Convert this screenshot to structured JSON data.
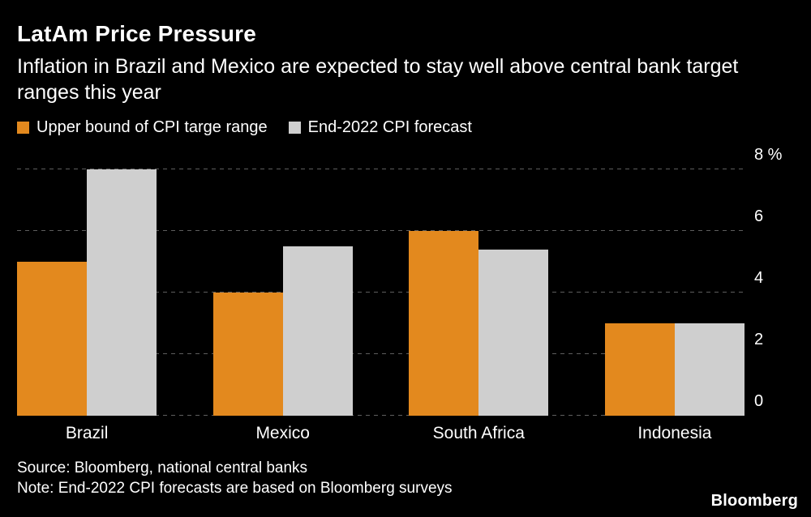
{
  "header": {
    "title": "LatAm Price Pressure",
    "subtitle": "Inflation in Brazil and Mexico are expected to stay well above central bank target ranges this year"
  },
  "chart_data": {
    "type": "bar",
    "title": "LatAm Price Pressure",
    "categories": [
      "Brazil",
      "Mexico",
      "South Africa",
      "Indonesia"
    ],
    "series": [
      {
        "name": "Upper bound of CPI targe range",
        "color": "#E3891E",
        "values": [
          5.0,
          4.0,
          6.0,
          3.0
        ]
      },
      {
        "name": "End-2022 CPI forecast",
        "color": "#CFCFCF",
        "values": [
          8.0,
          5.5,
          5.4,
          3.0
        ]
      }
    ],
    "ylim": [
      0,
      8
    ],
    "yticks": [
      0,
      2,
      4,
      6,
      8
    ],
    "y_unit": "%",
    "grid": "horizontal-dashed",
    "legend_position": "top-left",
    "bar_layout": "grouped"
  },
  "footer": {
    "source": "Source: Bloomberg, national central banks",
    "note": "Note: End-2022 CPI forecasts are based on Bloomberg surveys",
    "logo": "Bloomberg"
  },
  "colors": {
    "background": "#000000",
    "text": "#FFFFFF",
    "gridline": "#5E5E5E",
    "orange": "#E3891E",
    "gray": "#CFCFCF"
  }
}
